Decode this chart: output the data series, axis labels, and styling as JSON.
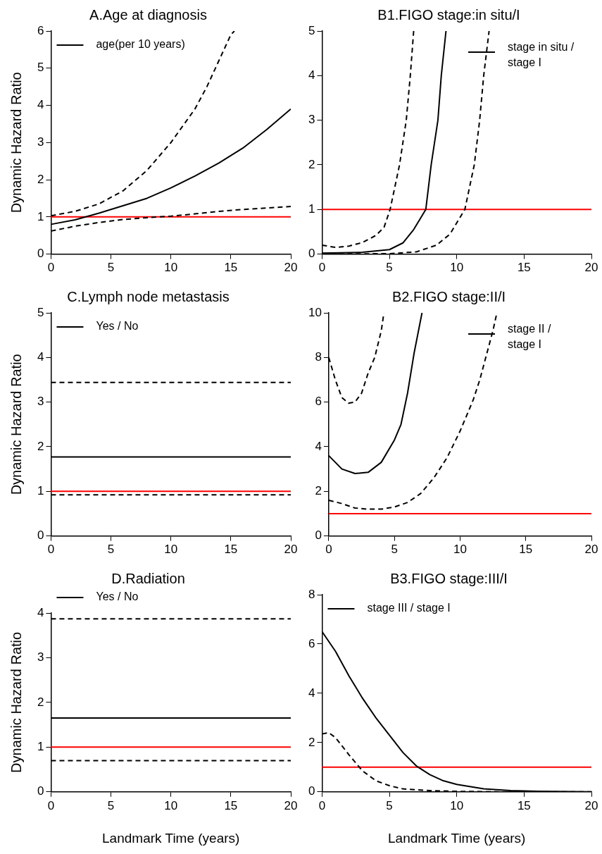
{
  "chart_data": [
    {
      "type": "line",
      "title": "A.Age at diagnosis",
      "ylabel": "Dynamic Hazard Ratio",
      "legend": "top left",
      "grid": false,
      "xlim": [
        0,
        20
      ],
      "xticks": [
        0,
        5,
        10,
        15,
        20
      ],
      "ylim": [
        0,
        6
      ],
      "yticks": [
        0,
        1,
        2,
        3,
        4,
        5,
        6
      ],
      "ref_lines": [
        {
          "axis": "y",
          "value": 1,
          "color": "#ff0000"
        }
      ],
      "series": [
        {
          "name": "age(per 10 years)",
          "color": "#000000",
          "line_style": "solid",
          "x": [
            0,
            2,
            4,
            6,
            8,
            10,
            12,
            14,
            16,
            18,
            20
          ],
          "values": [
            0.8,
            0.92,
            1.1,
            1.3,
            1.5,
            1.78,
            2.1,
            2.45,
            2.85,
            3.35,
            3.9
          ]
        },
        {
          "color": "#000000",
          "line_style": "dashed",
          "x": [
            0,
            2,
            4,
            6,
            8,
            10,
            12,
            13,
            14,
            15,
            15.3
          ],
          "values": [
            1.03,
            1.15,
            1.35,
            1.7,
            2.25,
            3.0,
            3.9,
            4.5,
            5.2,
            5.9,
            6
          ]
        },
        {
          "color": "#000000",
          "line_style": "dashed",
          "x": [
            0,
            2,
            4,
            6,
            8,
            10,
            12,
            14,
            16,
            18,
            20
          ],
          "values": [
            0.62,
            0.75,
            0.85,
            0.93,
            0.98,
            1.02,
            1.08,
            1.15,
            1.2,
            1.24,
            1.28
          ]
        }
      ]
    },
    {
      "type": "line",
      "title": "B1.FIGO stage:in situ/I",
      "legend": "top right",
      "grid": false,
      "xlim": [
        0,
        20
      ],
      "xticks": [
        0,
        5,
        10,
        15,
        20
      ],
      "ylim": [
        0,
        5
      ],
      "yticks": [
        0,
        1,
        2,
        3,
        4,
        5
      ],
      "ref_lines": [
        {
          "axis": "y",
          "value": 1,
          "color": "#ff0000"
        }
      ],
      "series": [
        {
          "name": "stage in situ / stage I",
          "color": "#000000",
          "line_style": "solid",
          "x": [
            0,
            3,
            5,
            6,
            6.8,
            7.3,
            7.7,
            8.1,
            8.6,
            8.85,
            9.2
          ],
          "values": [
            0.02,
            0.04,
            0.1,
            0.25,
            0.55,
            0.8,
            1,
            2,
            3,
            4,
            5
          ]
        },
        {
          "color": "#000000",
          "line_style": "dashed",
          "x": [
            0,
            1,
            2,
            3,
            4,
            4.6,
            5.05,
            5.75,
            6.25,
            6.55,
            6.8
          ],
          "values": [
            0.2,
            0.15,
            0.18,
            0.26,
            0.42,
            0.6,
            1,
            2,
            3,
            4,
            5
          ]
        },
        {
          "color": "#000000",
          "line_style": "dashed",
          "x": [
            0,
            5,
            7,
            8.5,
            9.5,
            10.6,
            11.3,
            11.7,
            12,
            12.4
          ],
          "values": [
            0,
            0.01,
            0.05,
            0.2,
            0.45,
            1,
            2,
            3,
            4,
            5
          ]
        }
      ]
    },
    {
      "type": "line",
      "title": "C.Lymph node metastasis",
      "ylabel": "Dynamic Hazard Ratio",
      "legend": "top left",
      "grid": false,
      "xlim": [
        0,
        20
      ],
      "xticks": [
        0,
        5,
        10,
        15,
        20
      ],
      "ylim": [
        0,
        5
      ],
      "yticks": [
        0,
        1,
        2,
        3,
        4,
        5
      ],
      "ref_lines": [
        {
          "axis": "y",
          "value": 1,
          "color": "#ff0000"
        }
      ],
      "series": [
        {
          "name": "Yes / No",
          "color": "#000000",
          "line_style": "solid",
          "x": [
            0,
            20
          ],
          "values": [
            1.77,
            1.77
          ]
        },
        {
          "color": "#000000",
          "line_style": "dashed",
          "x": [
            0,
            20
          ],
          "values": [
            3.44,
            3.44
          ]
        },
        {
          "color": "#000000",
          "line_style": "dashed",
          "x": [
            0,
            20
          ],
          "values": [
            0.92,
            0.92
          ]
        }
      ]
    },
    {
      "type": "line",
      "title": "B2.FIGO stage:II/I",
      "legend": "top right",
      "grid": false,
      "xlim": [
        0,
        20
      ],
      "xticks": [
        0,
        5,
        10,
        15,
        20
      ],
      "ylim": [
        0,
        10
      ],
      "yticks": [
        0,
        2,
        4,
        6,
        8,
        10
      ],
      "ref_lines": [
        {
          "axis": "y",
          "value": 1,
          "color": "#ff0000"
        }
      ],
      "series": [
        {
          "name": "stage II / stage I",
          "color": "#000000",
          "line_style": "solid",
          "x": [
            0,
            1,
            2,
            3,
            4,
            5,
            5.5,
            6,
            6.5,
            7.1
          ],
          "values": [
            3.6,
            3.0,
            2.8,
            2.85,
            3.3,
            4.3,
            5,
            6.4,
            8.2,
            10
          ]
        },
        {
          "color": "#000000",
          "line_style": "dashed",
          "x": [
            0,
            0.5,
            1,
            1.5,
            2,
            2.5,
            3,
            3.5,
            4,
            4.2
          ],
          "values": [
            8,
            7,
            6.2,
            5.95,
            6,
            6.4,
            7.3,
            8.0,
            9.2,
            10
          ]
        },
        {
          "color": "#000000",
          "line_style": "dashed",
          "x": [
            0,
            1,
            2,
            3,
            4,
            5,
            6,
            7,
            8,
            9,
            10,
            11,
            11.5,
            12,
            12.5,
            12.8
          ],
          "values": [
            1.6,
            1.45,
            1.25,
            1.2,
            1.2,
            1.3,
            1.5,
            1.9,
            2.6,
            3.5,
            4.7,
            6.1,
            7.0,
            8.1,
            9.2,
            10
          ]
        }
      ]
    },
    {
      "type": "line",
      "title": "D.Radiation",
      "ylabel": "Dynamic Hazard Ratio",
      "xlabel": "Landmark Time (years)",
      "legend": "top",
      "grid": false,
      "xlim": [
        0,
        20
      ],
      "xticks": [
        0,
        5,
        10,
        15,
        20
      ],
      "ylim": [
        0,
        4
      ],
      "yticks": [
        0,
        1,
        2,
        3,
        4
      ],
      "ref_lines": [
        {
          "axis": "y",
          "value": 1,
          "color": "#ff0000"
        }
      ],
      "series": [
        {
          "name": "Yes / No",
          "color": "#000000",
          "line_style": "solid",
          "x": [
            0,
            20
          ],
          "values": [
            1.65,
            1.65
          ]
        },
        {
          "color": "#000000",
          "line_style": "dashed",
          "x": [
            0,
            20
          ],
          "values": [
            3.87,
            3.87
          ]
        },
        {
          "color": "#000000",
          "line_style": "dashed",
          "x": [
            0,
            20
          ],
          "values": [
            0.7,
            0.7
          ]
        }
      ]
    },
    {
      "type": "line",
      "title": "B3.FIGO stage:III/I",
      "xlabel": "Landmark Time (years)",
      "legend": "top left",
      "grid": false,
      "xlim": [
        0,
        20
      ],
      "xticks": [
        0,
        5,
        10,
        15,
        20
      ],
      "ylim": [
        0,
        8
      ],
      "yticks": [
        0,
        2,
        4,
        6,
        8
      ],
      "ref_lines": [
        {
          "axis": "y",
          "value": 1,
          "color": "#ff0000"
        }
      ],
      "series": [
        {
          "name": "stage III / stage I",
          "color": "#000000",
          "line_style": "solid",
          "x": [
            0,
            1,
            2,
            3,
            4,
            5,
            6,
            7,
            8,
            9,
            10,
            12,
            14,
            16,
            20
          ],
          "values": [
            6.5,
            5.7,
            4.7,
            3.8,
            3.0,
            2.3,
            1.6,
            1.05,
            0.7,
            0.45,
            0.3,
            0.12,
            0.05,
            0.02,
            0
          ]
        },
        {
          "color": "#000000",
          "line_style": "dashed",
          "x": [
            0,
            0.5,
            1,
            2,
            3,
            4,
            5,
            6,
            8,
            10,
            14,
            20
          ],
          "values": [
            2.35,
            2.4,
            2.2,
            1.5,
            0.85,
            0.45,
            0.25,
            0.12,
            0.05,
            0.02,
            0,
            0
          ]
        }
      ]
    }
  ]
}
